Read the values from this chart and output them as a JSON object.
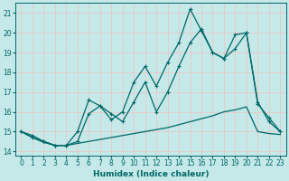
{
  "xlabel": "Humidex (Indice chaleur)",
  "xlim": [
    -0.5,
    23.5
  ],
  "ylim": [
    13.8,
    21.5
  ],
  "yticks": [
    14,
    15,
    16,
    17,
    18,
    19,
    20,
    21
  ],
  "xticks": [
    0,
    1,
    2,
    3,
    4,
    5,
    6,
    7,
    8,
    9,
    10,
    11,
    12,
    13,
    14,
    15,
    16,
    17,
    18,
    19,
    20,
    21,
    22,
    23
  ],
  "bg_color": "#c5e8e8",
  "grid_color": "#e8c8c8",
  "line_color": "#006868",
  "line1_x": [
    0,
    1,
    2,
    3,
    4,
    5,
    6,
    7,
    8,
    9,
    10,
    11,
    12,
    13,
    14,
    15,
    16,
    17,
    18,
    19,
    20,
    21,
    22,
    23
  ],
  "line1_y": [
    15.0,
    14.8,
    14.5,
    14.3,
    14.3,
    15.0,
    16.6,
    16.3,
    15.6,
    16.0,
    17.5,
    18.3,
    17.3,
    18.5,
    19.5,
    21.2,
    20.1,
    19.0,
    18.7,
    19.9,
    20.0,
    16.4,
    15.7,
    15.0
  ],
  "line2_x": [
    0,
    1,
    2,
    3,
    4,
    5,
    6,
    7,
    8,
    9,
    10,
    11,
    12,
    13,
    14,
    15,
    16,
    17,
    18,
    19,
    20,
    21,
    22,
    23
  ],
  "line2_y": [
    15.0,
    14.7,
    14.5,
    14.3,
    14.3,
    14.5,
    15.9,
    16.3,
    15.9,
    15.5,
    16.5,
    17.5,
    16.0,
    17.0,
    18.3,
    19.5,
    20.2,
    19.0,
    18.7,
    19.2,
    20.0,
    16.5,
    15.5,
    15.0
  ],
  "line3_x": [
    0,
    1,
    2,
    3,
    4,
    5,
    6,
    7,
    8,
    9,
    10,
    11,
    12,
    13,
    14,
    15,
    16,
    17,
    18,
    19,
    20,
    21,
    22,
    23
  ],
  "line3_y": [
    15.0,
    14.7,
    14.45,
    14.3,
    14.3,
    14.4,
    14.5,
    14.6,
    14.7,
    14.8,
    14.9,
    15.0,
    15.1,
    15.2,
    15.35,
    15.5,
    15.65,
    15.8,
    16.0,
    16.1,
    16.25,
    15.0,
    14.9,
    14.85
  ]
}
